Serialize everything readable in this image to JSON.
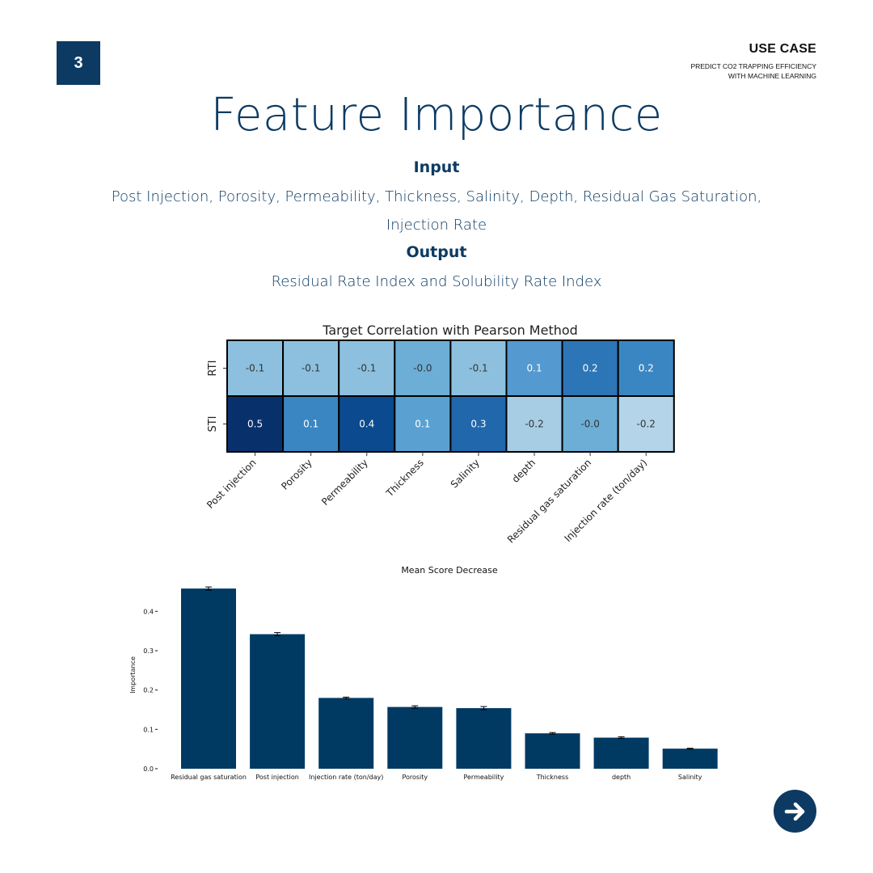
{
  "page": {
    "number": "3"
  },
  "header": {
    "use_case": "USE CASE",
    "subtitle_line1": "PREDICT CO2 TRAPPING EFFICIENCY",
    "subtitle_line2": "WITH MACHINE LEARNING"
  },
  "title": "Feature Importance",
  "input": {
    "heading": "Input",
    "line1": "Post Injection, Porosity, Permeability, Thickness, Salinity, Depth, Residual Gas Saturation,",
    "line2": "Injection Rate"
  },
  "output": {
    "heading": "Output",
    "text": "Residual Rate Index and Solubility Rate Index"
  },
  "chart_data": [
    {
      "type": "heatmap",
      "title": "Target Correlation with Pearson Method",
      "rows": [
        "RTI",
        "STI"
      ],
      "columns": [
        "Post injection",
        "Porosity",
        "Permeability",
        "Thickness",
        "Salinity",
        "depth",
        "Residual gas saturation",
        "Injection rate (ton/day)"
      ],
      "values": [
        [
          -0.1,
          -0.1,
          -0.1,
          -0.0,
          -0.1,
          0.1,
          0.2,
          0.2
        ],
        [
          0.5,
          0.1,
          0.4,
          0.1,
          0.3,
          -0.2,
          -0.0,
          -0.2
        ]
      ],
      "labels": [
        [
          "-0.1",
          "-0.1",
          "-0.1",
          "-0.0",
          "-0.1",
          "0.1",
          "0.2",
          "0.2"
        ],
        [
          "0.5",
          "0.1",
          "0.4",
          "0.1",
          "0.3",
          "-0.2",
          "-0.0",
          "-0.2"
        ]
      ],
      "colors": [
        [
          "#8cc0de",
          "#8cc0de",
          "#8cc0de",
          "#6daed6",
          "#8cc0de",
          "#5499cf",
          "#2c75b6",
          "#3a86c2"
        ],
        [
          "#08306b",
          "#3a86c2",
          "#0b4a8f",
          "#5aa1d2",
          "#2167ac",
          "#a6cde4",
          "#6daed6",
          "#b4d4e9"
        ]
      ],
      "colormap": "Blues"
    },
    {
      "type": "bar",
      "title": "Mean Score Decrease",
      "ylabel": "Importance",
      "xlabel": "",
      "categories": [
        "Residual gas saturation",
        "Post injection",
        "Injection rate (ton/day)",
        "Porosity",
        "Permeability",
        "Thickness",
        "depth",
        "Salinity"
      ],
      "values": [
        0.458,
        0.342,
        0.18,
        0.157,
        0.154,
        0.09,
        0.079,
        0.051
      ],
      "errors": [
        0.004,
        0.004,
        0.002,
        0.003,
        0.004,
        0.002,
        0.002,
        0.001
      ],
      "ylim": [
        0,
        0.48
      ],
      "yticks": [
        0.0,
        0.1,
        0.2,
        0.3,
        0.4
      ],
      "ytick_labels": [
        "0.0",
        "0.1",
        "0.2",
        "0.3",
        "0.4"
      ],
      "color": "#003a63"
    }
  ]
}
